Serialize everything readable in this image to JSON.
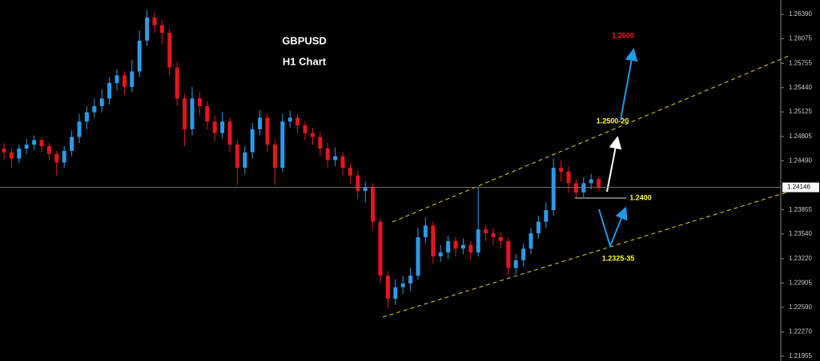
{
  "chart_data": {
    "type": "candlestick",
    "title": "GBPUSD",
    "subtitle": "H1 Chart",
    "up_color": "#2a9be8",
    "down_color": "#e8141b",
    "ohlc": [
      [
        1.2465,
        1.2472,
        1.245,
        1.246
      ],
      [
        1.246,
        1.2466,
        1.244,
        1.2452
      ],
      [
        1.2452,
        1.247,
        1.2446,
        1.2465
      ],
      [
        1.2465,
        1.2478,
        1.2458,
        1.247
      ],
      [
        1.247,
        1.2482,
        1.2463,
        1.2476
      ],
      [
        1.2476,
        1.248,
        1.246,
        1.2468
      ],
      [
        1.2468,
        1.2472,
        1.245,
        1.2458
      ],
      [
        1.2458,
        1.2462,
        1.243,
        1.2447
      ],
      [
        1.2447,
        1.2468,
        1.244,
        1.2462
      ],
      [
        1.2462,
        1.2488,
        1.2455,
        1.248
      ],
      [
        1.248,
        1.251,
        1.2472,
        1.25
      ],
      [
        1.25,
        1.252,
        1.249,
        1.2512
      ],
      [
        1.2512,
        1.253,
        1.2505,
        1.252
      ],
      [
        1.252,
        1.2542,
        1.2512,
        1.253
      ],
      [
        1.253,
        1.2558,
        1.2522,
        1.255
      ],
      [
        1.255,
        1.2568,
        1.254,
        1.256
      ],
      [
        1.256,
        1.2565,
        1.2535,
        1.2545
      ],
      [
        1.2545,
        1.258,
        1.2538,
        1.2565
      ],
      [
        1.2565,
        1.2618,
        1.2558,
        1.2605
      ],
      [
        1.2605,
        1.2645,
        1.2598,
        1.2635
      ],
      [
        1.2635,
        1.2642,
        1.2615,
        1.2625
      ],
      [
        1.2625,
        1.2632,
        1.26,
        1.2615
      ],
      [
        1.2615,
        1.262,
        1.256,
        1.257
      ],
      [
        1.257,
        1.2578,
        1.252,
        1.253
      ],
      [
        1.253,
        1.2536,
        1.2468,
        1.249
      ],
      [
        1.249,
        1.2545,
        1.2482,
        1.253
      ],
      [
        1.253,
        1.2538,
        1.2508,
        1.252
      ],
      [
        1.252,
        1.2526,
        1.249,
        1.25
      ],
      [
        1.25,
        1.2508,
        1.2475,
        1.2485
      ],
      [
        1.2485,
        1.2512,
        1.2478,
        1.25
      ],
      [
        1.25,
        1.2505,
        1.246,
        1.247
      ],
      [
        1.247,
        1.2476,
        1.2418,
        1.244
      ],
      [
        1.244,
        1.2468,
        1.2432,
        1.246
      ],
      [
        1.246,
        1.2498,
        1.2452,
        1.249
      ],
      [
        1.249,
        1.2515,
        1.2482,
        1.2505
      ],
      [
        1.2505,
        1.251,
        1.246,
        1.247
      ],
      [
        1.247,
        1.2476,
        1.2418,
        1.244
      ],
      [
        1.244,
        1.251,
        1.2435,
        1.25
      ],
      [
        1.25,
        1.2514,
        1.2492,
        1.2505
      ],
      [
        1.2505,
        1.251,
        1.2485,
        1.2495
      ],
      [
        1.2495,
        1.25,
        1.2476,
        1.2485
      ],
      [
        1.2485,
        1.2492,
        1.247,
        1.248
      ],
      [
        1.248,
        1.2486,
        1.2455,
        1.2465
      ],
      [
        1.2465,
        1.2472,
        1.244,
        1.245
      ],
      [
        1.245,
        1.2466,
        1.2442,
        1.2455
      ],
      [
        1.2455,
        1.246,
        1.243,
        1.244
      ],
      [
        1.244,
        1.2446,
        1.242,
        1.243
      ],
      [
        1.243,
        1.2436,
        1.24,
        1.241
      ],
      [
        1.241,
        1.2422,
        1.2395,
        1.2415
      ],
      [
        1.2415,
        1.242,
        1.236,
        1.237
      ],
      [
        1.237,
        1.2375,
        1.229,
        1.23
      ],
      [
        1.23,
        1.2306,
        1.2258,
        1.227
      ],
      [
        1.227,
        1.2295,
        1.2262,
        1.2285
      ],
      [
        1.2285,
        1.23,
        1.2276,
        1.229
      ],
      [
        1.229,
        1.231,
        1.228,
        1.23
      ],
      [
        1.23,
        1.2362,
        1.2295,
        1.235
      ],
      [
        1.235,
        1.2376,
        1.2342,
        1.2365
      ],
      [
        1.2365,
        1.237,
        1.2315,
        1.2325
      ],
      [
        1.2325,
        1.234,
        1.2318,
        1.233
      ],
      [
        1.233,
        1.2352,
        1.2322,
        1.2345
      ],
      [
        1.2345,
        1.235,
        1.2325,
        1.2335
      ],
      [
        1.2335,
        1.2348,
        1.2328,
        1.234
      ],
      [
        1.234,
        1.2345,
        1.232,
        1.233
      ],
      [
        1.233,
        1.2415,
        1.2325,
        1.236
      ],
      [
        1.236,
        1.2366,
        1.2345,
        1.2355
      ],
      [
        1.2355,
        1.2362,
        1.234,
        1.235
      ],
      [
        1.235,
        1.2356,
        1.2335,
        1.2345
      ],
      [
        1.2345,
        1.235,
        1.23,
        1.231
      ],
      [
        1.231,
        1.2328,
        1.2302,
        1.232
      ],
      [
        1.232,
        1.2342,
        1.2312,
        1.2335
      ],
      [
        1.2335,
        1.2362,
        1.2328,
        1.2355
      ],
      [
        1.2355,
        1.2378,
        1.2348,
        1.237
      ],
      [
        1.237,
        1.2395,
        1.2362,
        1.2385
      ],
      [
        1.2385,
        1.2452,
        1.2378,
        1.244
      ],
      [
        1.244,
        1.245,
        1.2422,
        1.2435
      ],
      [
        1.2435,
        1.2442,
        1.2408,
        1.242
      ],
      [
        1.242,
        1.2425,
        1.24,
        1.2408
      ],
      [
        1.2408,
        1.2428,
        1.2402,
        1.242
      ],
      [
        1.242,
        1.2432,
        1.2412,
        1.2425
      ],
      [
        1.2425,
        1.2428,
        1.241,
        1.2415
      ]
    ],
    "ylim": [
      1.21893,
      1.26577
    ],
    "yticks": [
      {
        "value": 1.2639,
        "label": "1.26390"
      },
      {
        "value": 1.26075,
        "label": "1.26075"
      },
      {
        "value": 1.25755,
        "label": "1.25755"
      },
      {
        "value": 1.2544,
        "label": "1.25440"
      },
      {
        "value": 1.25125,
        "label": "1.25125"
      },
      {
        "value": 1.24805,
        "label": "1.24805"
      },
      {
        "value": 1.2449,
        "label": "1.24490"
      },
      {
        "value": 1.23855,
        "label": "1.23855"
      },
      {
        "value": 1.2354,
        "label": "1.23540"
      },
      {
        "value": 1.2322,
        "label": "1.23220"
      },
      {
        "value": 1.22905,
        "label": "1.22905"
      },
      {
        "value": 1.2259,
        "label": "1.22590"
      },
      {
        "value": 1.2227,
        "label": "1.22270"
      },
      {
        "value": 1.21955,
        "label": "1.21955"
      }
    ],
    "last_price": 1.24146,
    "annotations": [
      {
        "text": "1.2600",
        "color": "#ff1a1a"
      },
      {
        "text": "1.2500-20",
        "color": "#ffff33"
      },
      {
        "text": "1.2400",
        "color": "#ffff33"
      },
      {
        "text": "1.2325-35",
        "color": "#ffff33"
      }
    ]
  }
}
